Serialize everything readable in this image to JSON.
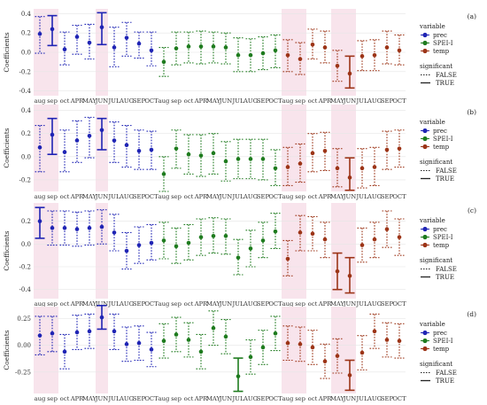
{
  "figure": {
    "categories": [
      "aug",
      "sep",
      "oct",
      "APR",
      "MAY",
      "JUN",
      "JUL",
      "AUG",
      "SEP",
      "OCT",
      "aug",
      "sep",
      "oct",
      "APR",
      "MAY",
      "JUN",
      "JUL",
      "AUG",
      "SEP",
      "OCT",
      "aug",
      "sep",
      "oct",
      "APR",
      "MAY",
      "JUN",
      "JUL",
      "AUG",
      "SEP",
      "OCT"
    ],
    "legend": {
      "variable_title": "variable",
      "variables": [
        {
          "name": "prec",
          "color": "#1f24b4"
        },
        {
          "name": "SPEI-I",
          "color": "#1e7b1e"
        },
        {
          "name": "temp",
          "color": "#9c3417"
        }
      ],
      "significant_title": "significant",
      "significant": [
        {
          "name": "FALSE",
          "style": "dotted"
        },
        {
          "name": "TRUE",
          "style": "solid"
        }
      ]
    },
    "ylabel": "Coefficients",
    "highlight_color": "#f8e4ec"
  },
  "chart_data": [
    {
      "type": "point-errorbar",
      "panel_label": "(a)",
      "ylabel": "Coefficients",
      "ylim": [
        -0.45,
        0.45
      ],
      "yticks": [
        -0.4,
        -0.2,
        0.0,
        0.2,
        0.4
      ],
      "tick_labels": [
        "-0.4",
        "-0.2",
        "0.0",
        "0.2",
        "0.4"
      ],
      "grid": true,
      "legend_position": "right",
      "series": [
        {
          "name": "prec",
          "estimates": [
            0.19,
            0.24,
            0.03,
            0.16,
            0.1,
            0.26,
            0.05,
            0.15,
            0.09,
            0.02
          ],
          "lower": [
            -0.01,
            0.07,
            -0.13,
            -0.02,
            -0.07,
            0.08,
            -0.15,
            -0.04,
            -0.06,
            -0.14
          ],
          "upper": [
            0.37,
            0.38,
            0.21,
            0.28,
            0.29,
            0.41,
            0.26,
            0.31,
            0.21,
            0.21
          ],
          "significant": [
            false,
            true,
            false,
            false,
            false,
            true,
            false,
            false,
            false,
            false
          ]
        },
        {
          "name": "SPEI-I",
          "estimates": [
            -0.1,
            0.04,
            0.06,
            0.06,
            0.06,
            0.05,
            -0.03,
            -0.03,
            -0.01,
            0.02
          ],
          "lower": [
            -0.25,
            -0.13,
            -0.11,
            -0.12,
            -0.11,
            -0.12,
            -0.2,
            -0.2,
            -0.18,
            -0.16
          ],
          "upper": [
            0.05,
            0.21,
            0.21,
            0.22,
            0.21,
            0.2,
            0.15,
            0.14,
            0.16,
            0.18
          ],
          "significant": [
            false,
            false,
            false,
            false,
            false,
            false,
            false,
            false,
            false,
            false
          ]
        },
        {
          "name": "temp",
          "estimates": [
            -0.03,
            -0.07,
            0.08,
            0.05,
            -0.14,
            -0.22,
            -0.04,
            -0.03,
            0.05,
            0.02
          ],
          "lower": [
            -0.2,
            -0.23,
            -0.07,
            -0.11,
            -0.3,
            -0.37,
            -0.19,
            -0.19,
            -0.12,
            -0.13
          ],
          "upper": [
            0.13,
            0.1,
            0.24,
            0.22,
            0.02,
            -0.04,
            0.12,
            0.13,
            0.22,
            0.18
          ],
          "significant": [
            false,
            false,
            false,
            false,
            false,
            true,
            false,
            false,
            false,
            false
          ]
        }
      ]
    },
    {
      "type": "point-errorbar",
      "panel_label": "(b)",
      "ylabel": "Coefficients",
      "ylim": [
        -0.3,
        0.45
      ],
      "yticks": [
        -0.2,
        0.0,
        0.2,
        0.4
      ],
      "tick_labels": [
        "-0.2",
        "0.0",
        "0.2",
        "0.4"
      ],
      "grid": true,
      "legend_position": "right",
      "series": [
        {
          "name": "prec",
          "estimates": [
            0.08,
            0.19,
            0.04,
            0.14,
            0.18,
            0.23,
            0.14,
            0.1,
            0.05,
            0.06
          ],
          "lower": [
            -0.13,
            0.02,
            -0.13,
            -0.05,
            -0.01,
            0.06,
            -0.05,
            -0.09,
            -0.11,
            -0.11
          ],
          "upper": [
            0.27,
            0.33,
            0.23,
            0.31,
            0.34,
            0.33,
            0.3,
            0.27,
            0.23,
            0.22
          ],
          "significant": [
            false,
            true,
            false,
            false,
            false,
            true,
            false,
            false,
            false,
            false
          ]
        },
        {
          "name": "SPEI-I",
          "estimates": [
            -0.15,
            0.07,
            0.02,
            0.01,
            0.03,
            -0.04,
            -0.02,
            -0.02,
            -0.02,
            -0.1
          ],
          "lower": [
            -0.3,
            -0.1,
            -0.15,
            -0.17,
            -0.15,
            -0.21,
            -0.19,
            -0.19,
            -0.2,
            -0.25
          ],
          "upper": [
            0.0,
            0.23,
            0.19,
            0.19,
            0.2,
            0.13,
            0.15,
            0.15,
            0.15,
            0.06
          ],
          "significant": [
            false,
            false,
            false,
            false,
            false,
            false,
            false,
            false,
            false,
            false
          ]
        },
        {
          "name": "temp",
          "estimates": [
            -0.09,
            -0.06,
            0.03,
            0.05,
            -0.1,
            -0.18,
            -0.1,
            -0.09,
            0.06,
            0.07
          ],
          "lower": [
            -0.25,
            -0.22,
            -0.13,
            -0.12,
            -0.26,
            -0.29,
            -0.27,
            -0.25,
            -0.11,
            -0.09
          ],
          "upper": [
            0.08,
            0.11,
            0.2,
            0.21,
            0.07,
            -0.01,
            0.07,
            0.08,
            0.22,
            0.23
          ],
          "significant": [
            false,
            false,
            false,
            false,
            false,
            true,
            false,
            false,
            false,
            false
          ]
        }
      ]
    },
    {
      "type": "point-errorbar",
      "panel_label": "(c)",
      "ylabel": "Coefficients",
      "ylim": [
        -0.48,
        0.36
      ],
      "yticks": [
        -0.4,
        -0.2,
        0.0,
        0.2
      ],
      "tick_labels": [
        "-0.4",
        "-0.2",
        "0.0",
        "0.2"
      ],
      "grid": true,
      "legend_position": "right",
      "series": [
        {
          "name": "prec",
          "estimates": [
            0.2,
            0.14,
            0.14,
            0.13,
            0.14,
            0.15,
            0.1,
            -0.06,
            -0.01,
            0.01
          ],
          "lower": [
            0.05,
            -0.01,
            -0.01,
            -0.02,
            -0.01,
            0.0,
            -0.06,
            -0.22,
            -0.17,
            -0.14
          ],
          "upper": [
            0.32,
            0.29,
            0.29,
            0.28,
            0.29,
            0.3,
            0.26,
            0.1,
            0.15,
            0.17
          ],
          "significant": [
            true,
            false,
            false,
            false,
            false,
            false,
            false,
            false,
            false,
            false
          ]
        },
        {
          "name": "SPEI-I",
          "estimates": [
            0.03,
            -0.02,
            0.01,
            0.06,
            0.07,
            0.07,
            -0.12,
            -0.04,
            0.03,
            0.11
          ],
          "lower": [
            -0.13,
            -0.17,
            -0.14,
            -0.1,
            -0.08,
            -0.09,
            -0.27,
            -0.2,
            -0.12,
            -0.04
          ],
          "upper": [
            0.19,
            0.14,
            0.17,
            0.22,
            0.23,
            0.22,
            0.04,
            0.12,
            0.19,
            0.27
          ],
          "significant": [
            false,
            false,
            false,
            false,
            false,
            false,
            false,
            false,
            false,
            false
          ]
        },
        {
          "name": "temp",
          "estimates": [
            -0.13,
            0.1,
            0.09,
            0.04,
            -0.24,
            -0.28,
            -0.01,
            0.04,
            0.13,
            0.06
          ],
          "lower": [
            -0.28,
            -0.06,
            -0.06,
            -0.12,
            -0.4,
            -0.43,
            -0.16,
            -0.12,
            -0.03,
            -0.1
          ],
          "upper": [
            0.03,
            0.25,
            0.24,
            0.19,
            -0.08,
            -0.12,
            0.14,
            0.19,
            0.29,
            0.22
          ],
          "significant": [
            false,
            false,
            false,
            false,
            true,
            true,
            false,
            false,
            false,
            false
          ]
        }
      ]
    },
    {
      "type": "point-errorbar",
      "panel_label": "(d)",
      "ylabel": "Coefficients",
      "ylim": [
        -0.45,
        0.36
      ],
      "yticks": [
        -0.25,
        0.0,
        0.25
      ],
      "tick_labels": [
        "-0.25",
        "0.00",
        "0.25"
      ],
      "grid": true,
      "legend_position": "right",
      "series": [
        {
          "name": "prec",
          "estimates": [
            0.09,
            0.11,
            -0.06,
            0.12,
            0.13,
            0.26,
            0.13,
            0.01,
            0.02,
            -0.04
          ],
          "lower": [
            -0.09,
            -0.06,
            -0.22,
            -0.04,
            -0.03,
            0.15,
            -0.04,
            -0.15,
            -0.14,
            -0.2
          ],
          "upper": [
            0.27,
            0.27,
            0.1,
            0.28,
            0.29,
            0.37,
            0.29,
            0.17,
            0.18,
            0.12
          ],
          "significant": [
            false,
            false,
            false,
            false,
            false,
            true,
            false,
            false,
            false,
            false
          ]
        },
        {
          "name": "SPEI-I",
          "estimates": [
            0.04,
            0.1,
            0.05,
            -0.06,
            0.16,
            0.08,
            -0.29,
            -0.11,
            -0.02,
            0.11
          ],
          "lower": [
            -0.12,
            -0.06,
            -0.11,
            -0.22,
            0.0,
            -0.08,
            -0.43,
            -0.27,
            -0.18,
            -0.05
          ],
          "upper": [
            0.2,
            0.26,
            0.21,
            0.1,
            0.32,
            0.24,
            -0.12,
            0.05,
            0.14,
            0.27
          ],
          "significant": [
            false,
            false,
            false,
            false,
            false,
            false,
            true,
            false,
            false,
            false
          ]
        },
        {
          "name": "temp",
          "estimates": [
            0.02,
            0.01,
            -0.02,
            -0.15,
            -0.1,
            -0.28,
            -0.07,
            0.13,
            0.05,
            0.04
          ],
          "lower": [
            -0.14,
            -0.15,
            -0.18,
            -0.31,
            -0.26,
            -0.42,
            -0.23,
            -0.03,
            -0.11,
            -0.12
          ],
          "upper": [
            0.18,
            0.17,
            0.14,
            0.01,
            0.06,
            -0.14,
            0.09,
            0.29,
            0.21,
            0.2
          ],
          "significant": [
            false,
            false,
            false,
            false,
            false,
            true,
            false,
            false,
            false,
            false
          ]
        }
      ]
    }
  ]
}
